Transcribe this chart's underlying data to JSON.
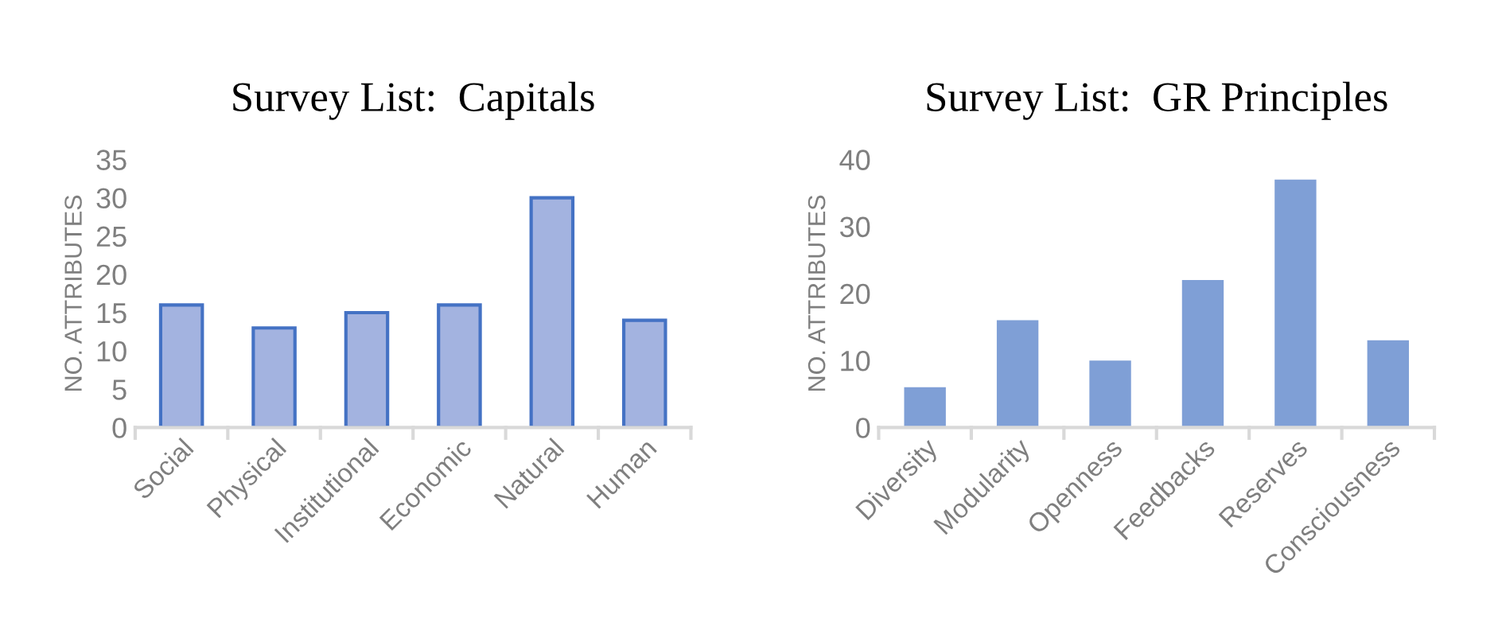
{
  "chart_data": [
    {
      "type": "bar",
      "title": "Survey List:  Capitals",
      "ylabel": "NO. ATTRIBUTES",
      "categories": [
        "Social",
        "Physical",
        "Institutional",
        "Economic",
        "Natural",
        "Human"
      ],
      "values": [
        16,
        13,
        15,
        16,
        30,
        14
      ],
      "color": "#a3b3e0",
      "ylim": [
        0,
        35
      ],
      "yticks": [
        0,
        5,
        10,
        15,
        20,
        25,
        30,
        35
      ],
      "grid": false
    },
    {
      "type": "bar",
      "title": "Survey List:  GR Principles",
      "ylabel": "NO. ATTRIBUTES",
      "categories": [
        "Diversity",
        "Modularity",
        "Openness",
        "Feedbacks",
        "Reserves",
        "Consciousness"
      ],
      "values": [
        6,
        16,
        10,
        22,
        37,
        13
      ],
      "color": "#7f9fd6",
      "ylim": [
        0,
        40
      ],
      "yticks": [
        0,
        10,
        20,
        30,
        40
      ],
      "grid": false
    }
  ]
}
